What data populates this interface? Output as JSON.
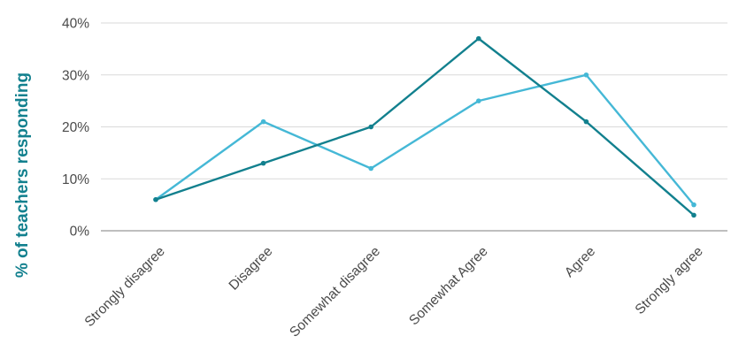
{
  "chart_data": {
    "type": "line",
    "title": "",
    "xlabel": "",
    "ylabel": "% of teachers responding",
    "categories": [
      "Strongly disagree",
      "Disagree",
      "Somewhat disagree",
      "Somewhat Agree",
      "Agree",
      "Strongly agree"
    ],
    "y_ticks": [
      "0%",
      "10%",
      "20%",
      "30%",
      "40%"
    ],
    "ylim": [
      0,
      40
    ],
    "grid": true,
    "legend": "none",
    "series": [
      {
        "values": [
          6,
          13,
          20,
          37,
          21,
          3
        ],
        "color": "#12808e"
      },
      {
        "values": [
          6,
          21,
          12,
          25,
          30,
          5
        ],
        "color": "#45b8d6"
      }
    ],
    "colors": {
      "ylabel": "#12808e",
      "grid": "#d9d9d9",
      "axis": "#7f7f7f"
    }
  }
}
